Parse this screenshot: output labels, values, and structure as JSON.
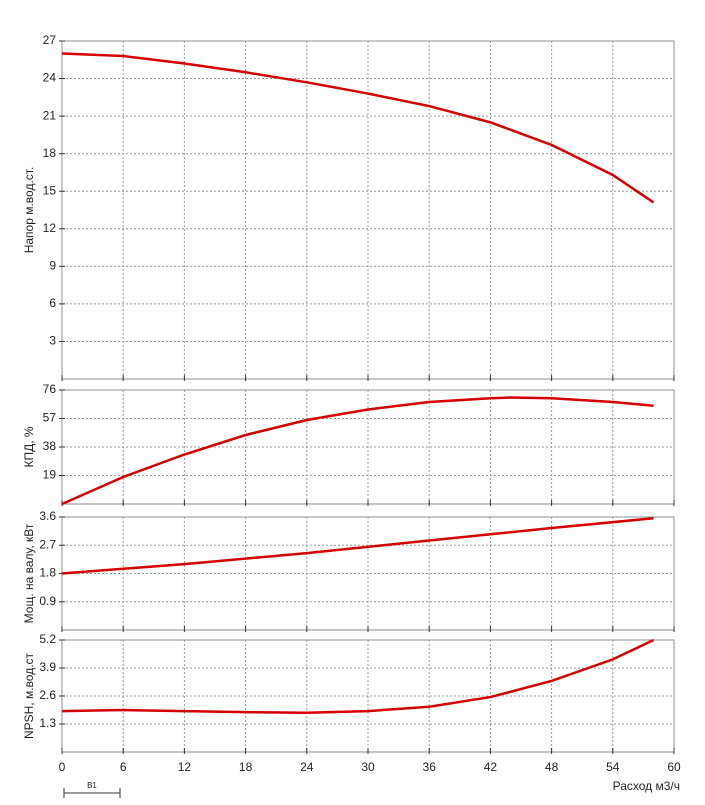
{
  "chart_data": [
    {
      "type": "line",
      "ylabel": "Напор м.вод.ст.",
      "x": [
        0,
        6,
        12,
        18,
        24,
        30,
        36,
        42,
        48,
        54,
        58
      ],
      "series": [
        {
          "color": "#d40000",
          "values": [
            26.0,
            25.8,
            25.2,
            24.5,
            23.7,
            22.8,
            21.8,
            20.5,
            18.7,
            16.3,
            14.1
          ]
        }
      ],
      "xlim": [
        0,
        60
      ],
      "xticks": [
        0,
        6,
        12,
        18,
        24,
        30,
        36,
        42,
        48,
        54,
        60
      ],
      "ylim": [
        0,
        27
      ],
      "yticks": [
        3,
        6,
        9,
        12,
        15,
        18,
        21,
        24,
        27
      ],
      "grid": true
    },
    {
      "type": "line",
      "ylabel": "КПД, %",
      "x": [
        0,
        6,
        12,
        18,
        24,
        30,
        36,
        42,
        44,
        48,
        54,
        58
      ],
      "series": [
        {
          "color": "#d40000",
          "values": [
            0,
            18,
            33,
            46,
            56,
            63,
            68,
            70.5,
            71,
            70.5,
            68,
            65.5
          ]
        }
      ],
      "xlim": [
        0,
        60
      ],
      "xticks": [
        0,
        6,
        12,
        18,
        24,
        30,
        36,
        42,
        48,
        54,
        60
      ],
      "ylim": [
        0,
        76
      ],
      "yticks": [
        19,
        38,
        57,
        76
      ],
      "grid": true
    },
    {
      "type": "line",
      "ylabel": "Мощ. на валу, кВт",
      "x": [
        0,
        12,
        24,
        36,
        48,
        58
      ],
      "series": [
        {
          "color": "#d40000",
          "values": [
            1.8,
            2.1,
            2.45,
            2.85,
            3.25,
            3.56
          ]
        }
      ],
      "xlim": [
        0,
        60
      ],
      "xticks": [
        0,
        6,
        12,
        18,
        24,
        30,
        36,
        42,
        48,
        54,
        60
      ],
      "ylim": [
        0,
        3.6
      ],
      "yticks": [
        0.9,
        1.8,
        2.7,
        3.6
      ],
      "grid": true
    },
    {
      "type": "line",
      "ylabel": "NPSH, м.вод.ст",
      "xlabel": "Расход м3/ч",
      "annotation": "B1",
      "x": [
        0,
        6,
        12,
        18,
        24,
        30,
        36,
        42,
        48,
        54,
        58
      ],
      "series": [
        {
          "color": "#d40000",
          "values": [
            1.9,
            1.95,
            1.9,
            1.85,
            1.82,
            1.9,
            2.1,
            2.55,
            3.3,
            4.3,
            5.2
          ]
        }
      ],
      "xlim": [
        0,
        60
      ],
      "xticks": [
        0,
        6,
        12,
        18,
        24,
        30,
        36,
        42,
        48,
        54,
        60
      ],
      "ylim": [
        0,
        5.2
      ],
      "yticks": [
        1.3,
        2.6,
        3.9,
        5.2
      ],
      "grid": true,
      "show_x_tick_labels": true
    }
  ]
}
